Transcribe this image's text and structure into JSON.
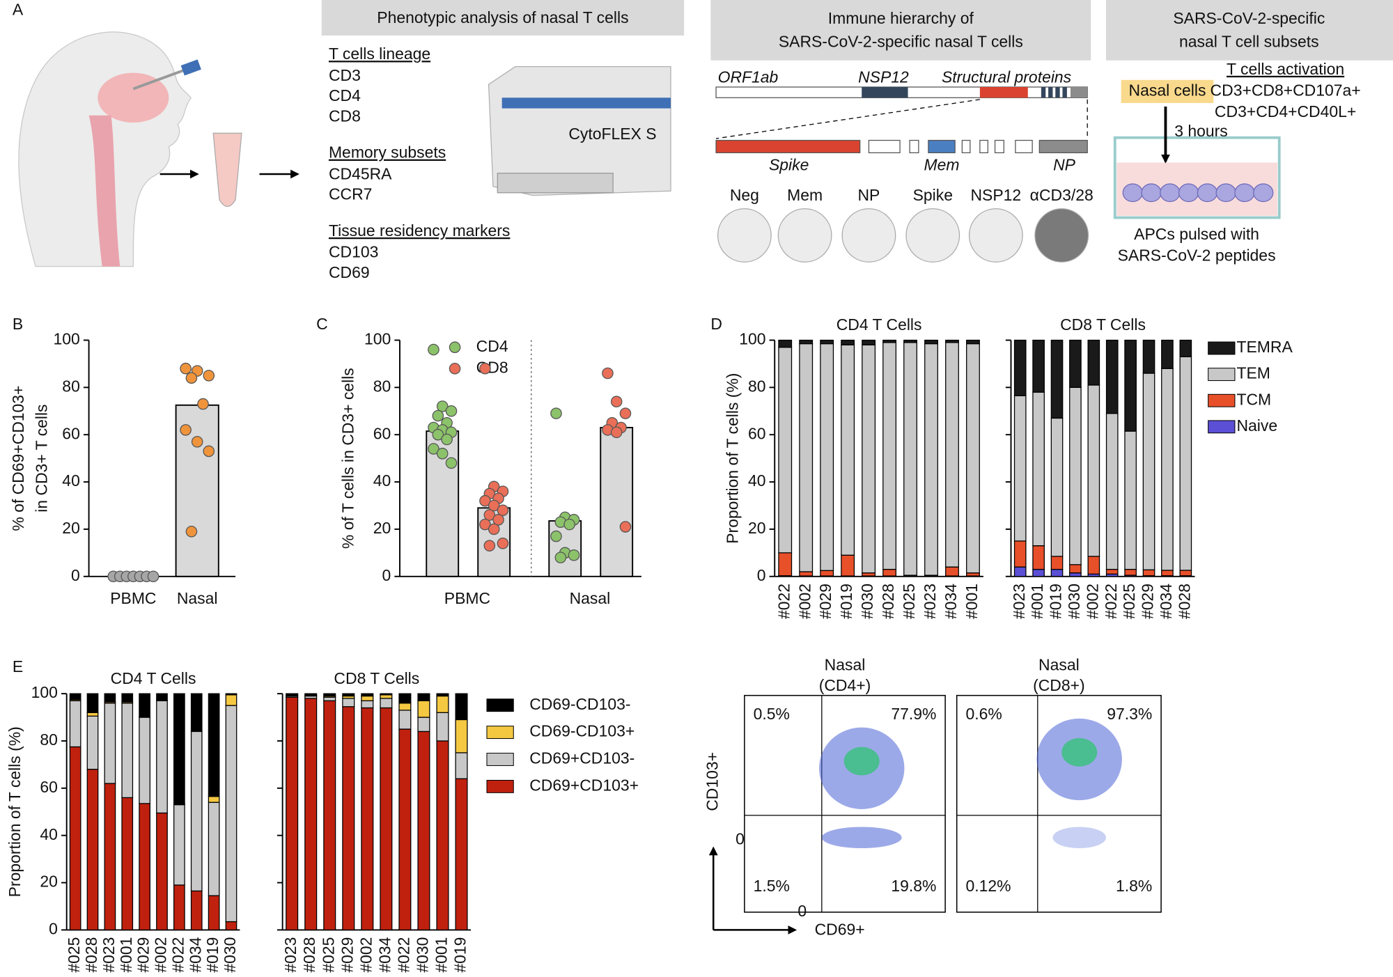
{
  "panel_labels": [
    "A",
    "B",
    "C",
    "D",
    "E"
  ],
  "panel_a": {
    "headers": [
      "Phenotypic analysis of nasal T cells",
      [
        "Immune hierarchy of",
        "SARS-CoV-2-specific nasal T cells"
      ],
      [
        "SARS-CoV-2-specific",
        "nasal T cell subsets"
      ]
    ],
    "markers": [
      {
        "heading": "T cells lineage",
        "items": [
          "CD3",
          "CD4",
          "CD8"
        ]
      },
      {
        "heading": "Memory subsets",
        "items": [
          "CD45RA",
          "CCR7"
        ]
      },
      {
        "heading": "Tissue residency markers",
        "items": [
          "CD103",
          "CD69"
        ]
      }
    ],
    "instrument": "CytoFLEX S",
    "genome": {
      "orf": "ORF1ab",
      "nsp": "NSP12",
      "structural": "Structural proteins",
      "spike": "Spike",
      "mem": "Mem",
      "np": "NP"
    },
    "wells": [
      "Neg",
      "Mem",
      "NP",
      "Spike",
      "NSP12",
      "αCD3/28"
    ],
    "assay": {
      "nasal_cells": "Nasal cells",
      "activation_heading": "T cells activation",
      "activation": [
        "CD3+CD8+CD107a+",
        "CD3+CD4+CD40L+"
      ],
      "duration": "3 hours",
      "apc": [
        "APCs pulsed with",
        "SARS-CoV-2 peptides"
      ]
    }
  },
  "chart_data": [
    {
      "type": "bar_dot",
      "ylabel": [
        "% of CD69+CD103+",
        "in CD3+ T cells"
      ],
      "categories": [
        "PBMC",
        "Nasal"
      ],
      "values": [
        0.3,
        72.5
      ],
      "points": [
        [
          0,
          0,
          0,
          0,
          0,
          0,
          0
        ],
        [
          88,
          87,
          85,
          84,
          73,
          62,
          57,
          53,
          19
        ]
      ],
      "point_colors": [
        "#a6a6a6",
        "#f0943c"
      ],
      "bar_color": "#d9d9d9",
      "ylim": [
        0,
        100
      ],
      "yticks": [
        0,
        20,
        40,
        60,
        80,
        100
      ]
    },
    {
      "type": "grouped_bar_dot",
      "ylabel": "% of T cells in CD3+ cells",
      "categories": [
        "PBMC",
        "Nasal"
      ],
      "bar_color": "#d9d9d9",
      "series": [
        {
          "name": "CD4",
          "color": "#8cc26a",
          "values": [
            61.5,
            23.5
          ],
          "points": [
            [
              96,
              72,
              70,
              68,
              65,
              63,
              62,
              61,
              60,
              58,
              54,
              52,
              48
            ],
            [
              69,
              25,
              24,
              23,
              22,
              17,
              10,
              9,
              8
            ]
          ]
        },
        {
          "name": "CD8",
          "color": "#ea6f58",
          "values": [
            29,
            63
          ],
          "points": [
            [
              88,
              38,
              36,
              35,
              33,
              32,
              30,
              28,
              26,
              24,
              22,
              20,
              14,
              13
            ],
            [
              86,
              74,
              69,
              65,
              63,
              62,
              61,
              21
            ]
          ]
        }
      ],
      "ylim": [
        0,
        100
      ],
      "yticks": [
        0,
        20,
        40,
        60,
        80,
        100
      ]
    },
    {
      "type": "stacked_bar_multi",
      "ylabel": "Proportion of T cells (%)",
      "series": [
        {
          "name": "Naive",
          "color": "#5b4fd6"
        },
        {
          "name": "TCM",
          "color": "#e8502a"
        },
        {
          "name": "TEM",
          "color": "#c8c8c8"
        },
        {
          "name": "TEMRA",
          "color": "#1a1a1a"
        }
      ],
      "panels": [
        {
          "title": "CD4 T Cells",
          "categories": [
            "#022",
            "#002",
            "#029",
            "#019",
            "#030",
            "#028",
            "#025",
            "#023",
            "#034",
            "#001"
          ],
          "values": [
            [
              0.3,
              0.2,
              0.2,
              0.2,
              0.2,
              0.2,
              0.1,
              0.1,
              0.2,
              0.2
            ],
            [
              9.7,
              1.8,
              2.3,
              8.8,
              1.3,
              2.8,
              0.4,
              0.4,
              3.8,
              1.3
            ],
            [
              87,
              96.5,
              96,
              89,
              96.5,
              96,
              98.5,
              98,
              95,
              97
            ],
            [
              3,
              1.5,
              1.5,
              2,
              2,
              1,
              1,
              1.5,
              1,
              1.5
            ]
          ]
        },
        {
          "title": "CD8 T Cells",
          "categories": [
            "#023",
            "#001",
            "#019",
            "#030",
            "#002",
            "#022",
            "#025",
            "#029",
            "#034",
            "#028"
          ],
          "values": [
            [
              4,
              3,
              3,
              1.5,
              1,
              1,
              0.5,
              0.3,
              0.3,
              0.3
            ],
            [
              11,
              10,
              5.5,
              3.5,
              7.5,
              2,
              2.5,
              2.5,
              2.3,
              2.3
            ],
            [
              61.5,
              65,
              58.5,
              75,
              72.5,
              66,
              58.5,
              83.2,
              85.4,
              90.4
            ],
            [
              23.5,
              22,
              33,
              20,
              19,
              31,
              38.5,
              14,
              12,
              7
            ]
          ]
        }
      ],
      "ylim": [
        0,
        100
      ],
      "yticks": [
        0,
        20,
        40,
        60,
        80,
        100
      ]
    },
    {
      "type": "stacked_bar_multi",
      "ylabel": "Proportion of T cells (%)",
      "series": [
        {
          "name": "CD69+CD103+",
          "color": "#c0210f"
        },
        {
          "name": "CD69+CD103-",
          "color": "#c8c8c8"
        },
        {
          "name": "CD69-CD103+",
          "color": "#f5c842"
        },
        {
          "name": "CD69-CD103-",
          "color": "#000000"
        }
      ],
      "panels": [
        {
          "title": "CD4 T Cells",
          "categories": [
            "#025",
            "#028",
            "#023",
            "#001",
            "#029",
            "#002",
            "#022",
            "#034",
            "#019",
            "#030"
          ],
          "values": [
            [
              77.5,
              68,
              62,
              56,
              53.5,
              49.5,
              19,
              16.5,
              14.5,
              3.5
            ],
            [
              19.5,
              22.5,
              34,
              40,
              36.5,
              47.5,
              34,
              67.5,
              39.5,
              91.5
            ],
            [
              0.5,
              1.5,
              0.5,
              0.5,
              0.3,
              0.3,
              0.3,
              0.3,
              2.5,
              4.5
            ],
            [
              2.5,
              8,
              3.5,
              3.5,
              9.7,
              2.7,
              46.7,
              15.7,
              43.5,
              0.5
            ]
          ]
        },
        {
          "title": "CD8 T Cells",
          "categories": [
            "#023",
            "#028",
            "#025",
            "#029",
            "#002",
            "#034",
            "#022",
            "#030",
            "#001",
            "#019"
          ],
          "values": [
            [
              98.5,
              98,
              97,
              94.5,
              94,
              94,
              85,
              84,
              80,
              64
            ],
            [
              0.5,
              1,
              1.5,
              3.5,
              3,
              4,
              8,
              6,
              12,
              11
            ],
            [
              0.2,
              0.2,
              0.5,
              1,
              2,
              1.5,
              3,
              7,
              7,
              14
            ],
            [
              0.8,
              0.8,
              1,
              1,
              1,
              0.5,
              4,
              3,
              1,
              11
            ]
          ]
        }
      ],
      "ylim": [
        0,
        100
      ],
      "yticks": [
        0,
        20,
        40,
        60,
        80,
        100
      ]
    }
  ],
  "flow_plots": {
    "y_axis_label": "CD103+",
    "x_axis_label": "CD69+",
    "y_zero": "0",
    "x_zero": "0",
    "plots": [
      {
        "title": [
          "Nasal",
          "(CD4+)"
        ],
        "q_ul": "0.5%",
        "q_ur": "77.9%",
        "q_ll": "1.5%",
        "q_lr": "19.8%"
      },
      {
        "title": [
          "Nasal",
          "(CD8+)"
        ],
        "q_ul": "0.6%",
        "q_ur": "97.3%",
        "q_ll": "0.12%",
        "q_lr": "1.8%"
      }
    ]
  }
}
